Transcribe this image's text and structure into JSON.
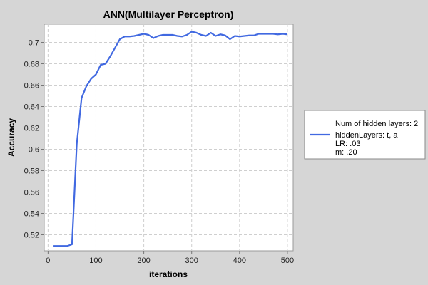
{
  "chart_data": {
    "type": "line",
    "title": "ANN(Multilayer Perceptron)",
    "xlabel": "iterations",
    "ylabel": "Accuracy",
    "xlim": [
      -8,
      512
    ],
    "ylim": [
      0.505,
      0.717
    ],
    "xticks": [
      0,
      100,
      200,
      300,
      400,
      500
    ],
    "yticks": [
      0.52,
      0.54,
      0.56,
      0.58,
      0.6,
      0.62,
      0.64,
      0.66,
      0.68,
      0.7
    ],
    "grid": true,
    "legend_position": "right",
    "series": [
      {
        "name": "Num of hidden layers: 2",
        "legend_lines": [
          "Num of hidden layers: 2",
          "hiddenLayers: t, a",
          "LR: .03",
          "m: .20"
        ],
        "color": "#4169e1",
        "x": [
          10,
          20,
          30,
          40,
          50,
          60,
          70,
          80,
          90,
          100,
          110,
          120,
          130,
          140,
          150,
          160,
          170,
          180,
          190,
          200,
          210,
          220,
          230,
          240,
          250,
          260,
          270,
          280,
          290,
          300,
          310,
          320,
          330,
          340,
          350,
          360,
          370,
          380,
          390,
          400,
          410,
          420,
          430,
          440,
          450,
          460,
          470,
          480,
          490,
          500
        ],
        "y": [
          0.5095,
          0.5095,
          0.5095,
          0.5095,
          0.511,
          0.605,
          0.648,
          0.659,
          0.666,
          0.67,
          0.679,
          0.68,
          0.687,
          0.695,
          0.703,
          0.7055,
          0.7055,
          0.706,
          0.707,
          0.708,
          0.707,
          0.704,
          0.706,
          0.707,
          0.707,
          0.707,
          0.706,
          0.7055,
          0.707,
          0.71,
          0.709,
          0.707,
          0.706,
          0.709,
          0.706,
          0.7075,
          0.7065,
          0.703,
          0.706,
          0.7055,
          0.706,
          0.7065,
          0.7065,
          0.708,
          0.708,
          0.708,
          0.708,
          0.7075,
          0.708,
          0.7075
        ]
      }
    ]
  }
}
